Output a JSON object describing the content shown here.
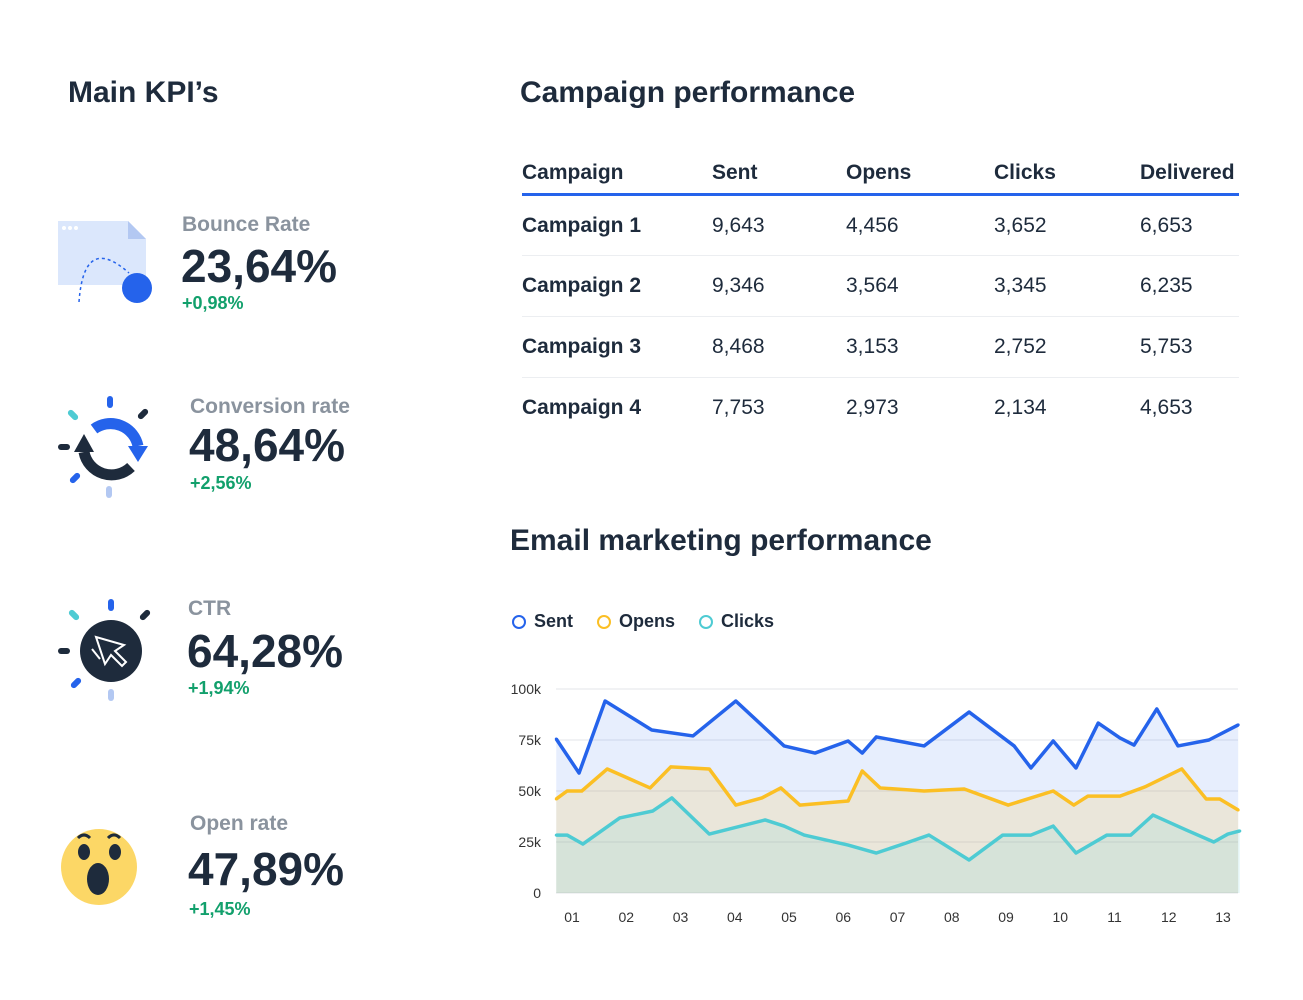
{
  "kpis": {
    "title": "Main KPI’s",
    "items": [
      {
        "label": "Bounce Rate",
        "value": "23,64%",
        "delta": "+0,98%",
        "icon": "bounce-icon"
      },
      {
        "label": "Conversion rate",
        "value": "48,64%",
        "delta": "+2,56%",
        "icon": "refresh-icon"
      },
      {
        "label": "CTR",
        "value": "64,28%",
        "delta": "+1,94%",
        "icon": "cursor-click-icon"
      },
      {
        "label": "Open rate",
        "value": "47,89%",
        "delta": "+1,45%",
        "icon": "surprised-emoji-icon"
      }
    ]
  },
  "campaigns": {
    "title": "Campaign performance",
    "headers": [
      "Campaign",
      "Sent",
      "Opens",
      "Clicks",
      "Delivered"
    ],
    "rows": [
      [
        "Campaign 1",
        "9,643",
        "4,456",
        "3,652",
        "6,653"
      ],
      [
        "Campaign 2",
        "9,346",
        "3,564",
        "3,345",
        "6,235"
      ],
      [
        "Campaign 3",
        "8,468",
        "3,153",
        "2,752",
        "5,753"
      ],
      [
        "Campaign 4",
        "7,753",
        "2,973",
        "2,134",
        "4,653"
      ]
    ]
  },
  "colors": {
    "text": "#1e2b3c",
    "muted": "#8a939e",
    "positive": "#12a06c",
    "sent": "#2563eb",
    "opens": "#fbbf24",
    "clicks": "#4ecbd3"
  },
  "chart_data": {
    "type": "area",
    "title": "Email marketing performance",
    "legend_position": "top-left",
    "grid": true,
    "x_ticks": [
      "01",
      "02",
      "03",
      "04",
      "05",
      "06",
      "07",
      "08",
      "09",
      "10",
      "11",
      "12",
      "13"
    ],
    "y_ticks": [
      "0",
      "25k",
      "50k",
      "75k",
      "100k"
    ],
    "ylim": [
      0,
      100000
    ],
    "series": [
      {
        "name": "Sent",
        "color": "#2563eb",
        "x": [
          0.71,
          1.13,
          1.61,
          2.47,
          3.23,
          4.02,
          4.91,
          5.48,
          6.09,
          6.35,
          6.61,
          7.49,
          8.32,
          9.15,
          9.46,
          9.87,
          10.29,
          10.7,
          11.1,
          11.36,
          11.78,
          12.17,
          12.74,
          13.28
        ],
        "y": [
          75500,
          58800,
          94100,
          79900,
          77000,
          94100,
          72100,
          68600,
          74500,
          68600,
          76500,
          72100,
          88700,
          72100,
          61300,
          74500,
          61300,
          83300,
          76000,
          72500,
          90200,
          72100,
          75000,
          82400
        ]
      },
      {
        "name": "Opens",
        "color": "#fbbf24",
        "x": [
          0.71,
          0.91,
          1.18,
          1.65,
          2.44,
          2.82,
          3.53,
          4.02,
          4.5,
          4.85,
          5.2,
          6.09,
          6.35,
          6.68,
          7.49,
          8.23,
          9.04,
          9.87,
          10.25,
          10.51,
          11.1,
          11.56,
          12.24,
          12.69,
          12.94,
          13.28
        ],
        "y": [
          46100,
          50000,
          50000,
          60800,
          51500,
          61800,
          60800,
          43100,
          46600,
          51500,
          43100,
          45100,
          59800,
          51500,
          50000,
          51000,
          43100,
          50000,
          43100,
          47500,
          47500,
          52000,
          60800,
          46100,
          46100,
          40700
        ]
      },
      {
        "name": "Clicks",
        "color": "#4ecbd3",
        "x": [
          0.71,
          0.91,
          1.2,
          1.88,
          2.49,
          2.84,
          3.53,
          4.56,
          4.91,
          5.28,
          6.09,
          6.61,
          7.16,
          7.58,
          8.32,
          8.94,
          9.46,
          9.87,
          10.29,
          10.86,
          11.3,
          11.71,
          12.32,
          12.83,
          13.09,
          13.31
        ],
        "y": [
          28400,
          28400,
          24000,
          36800,
          40200,
          46600,
          28900,
          35800,
          32800,
          28400,
          23500,
          19600,
          24500,
          28400,
          16200,
          28400,
          28400,
          32800,
          19600,
          28400,
          28400,
          38200,
          30900,
          25000,
          28900,
          30400
        ]
      }
    ]
  }
}
